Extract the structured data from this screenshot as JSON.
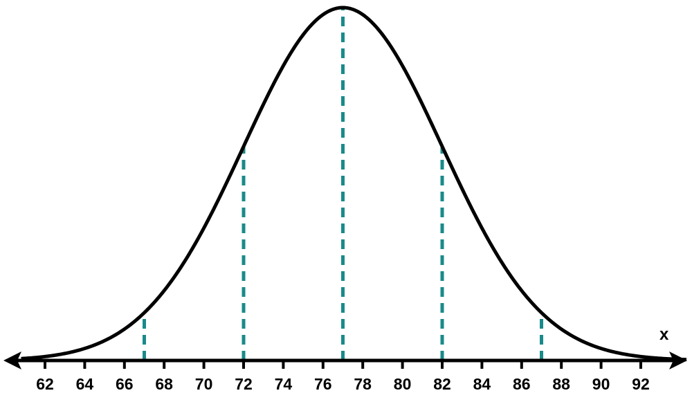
{
  "chart_data": {
    "type": "line",
    "title": "",
    "xlabel": "x",
    "ylabel": "",
    "xlim": [
      60.5,
      95.5
    ],
    "x_ticks": [
      62,
      64,
      66,
      68,
      70,
      72,
      74,
      76,
      78,
      80,
      82,
      84,
      86,
      88,
      90,
      92
    ],
    "x_tick_labels": [
      "62",
      "64",
      "66",
      "68",
      "70",
      "72",
      "74",
      "76",
      "78",
      "80",
      "82",
      "84",
      "86",
      "88",
      "90",
      "92"
    ],
    "grid": false,
    "legend": "none",
    "distribution": {
      "family": "normal",
      "mean": 77,
      "sd": 5
    },
    "reference_lines": [
      67,
      72,
      77,
      82,
      87
    ],
    "curve_color": "#000000",
    "reference_line_color": "#1a8a8a",
    "axis_color": "#000000"
  }
}
